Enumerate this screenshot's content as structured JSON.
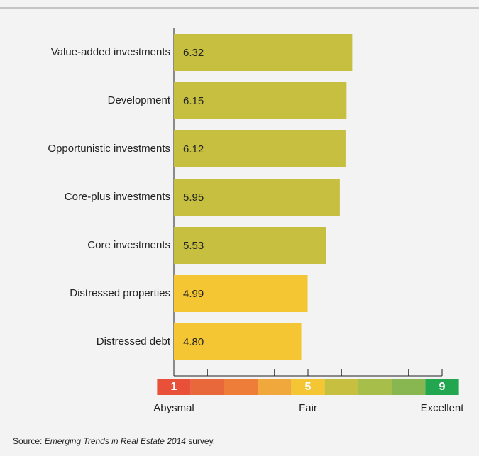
{
  "chart_data": {
    "type": "bar",
    "orientation": "horizontal",
    "categories": [
      "Value-added investments",
      "Development",
      "Opportunistic investments",
      "Core-plus investments",
      "Core investments",
      "Distressed properties",
      "Distressed debt"
    ],
    "values": [
      6.32,
      6.15,
      6.12,
      5.95,
      5.53,
      4.99,
      4.8
    ],
    "value_labels": [
      "6.32",
      "6.15",
      "6.12",
      "5.95",
      "5.53",
      "4.99",
      "4.80"
    ],
    "colors": [
      "#c6bf3f",
      "#c6bf3f",
      "#c6bf3f",
      "#c6bf3f",
      "#c6bf3f",
      "#f4c633",
      "#f4c633"
    ],
    "xlim": [
      1,
      9
    ],
    "xticks": [
      1,
      2,
      3,
      4,
      5,
      6,
      7,
      8,
      9
    ],
    "scale_colors": [
      "#e8503a",
      "#e8673b",
      "#ee7d3a",
      "#f0a83c",
      "#f4c633",
      "#c6bf3f",
      "#a8be4b",
      "#88b752",
      "#22a64f"
    ],
    "scale_labels": [
      "1",
      null,
      null,
      null,
      "5",
      null,
      null,
      null,
      "9"
    ],
    "scale_descriptors": [
      "Abysmal",
      "Fair",
      "Excellent"
    ],
    "source_prefix": "Source: ",
    "source_title": "Emerging Trends in Real Estate 2014",
    "source_suffix": " survey."
  }
}
